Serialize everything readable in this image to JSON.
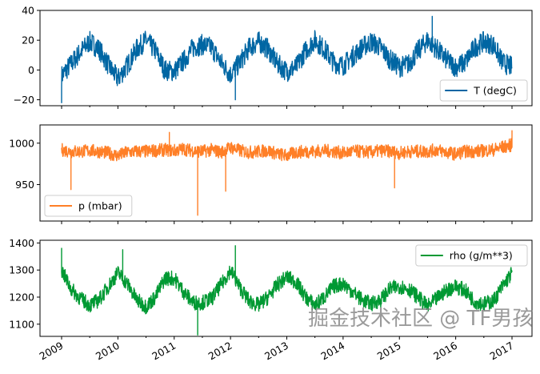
{
  "watermark": "掘金技术社区 @ TF男孩",
  "chart_data": {
    "type": "line",
    "x_ticks": [
      "2009",
      "2010",
      "2011",
      "2012",
      "2013",
      "2014",
      "2015",
      "2016",
      "2017"
    ],
    "x_range": [
      "2009-01",
      "2017-01"
    ],
    "x": [
      "2009-01",
      "2009-03",
      "2009-05",
      "2009-07",
      "2009-09",
      "2009-11",
      "2010-01",
      "2010-03",
      "2010-05",
      "2010-07",
      "2010-09",
      "2010-11",
      "2011-01",
      "2011-03",
      "2011-05",
      "2011-07",
      "2011-09",
      "2011-11",
      "2012-01",
      "2012-03",
      "2012-05",
      "2012-07",
      "2012-09",
      "2012-11",
      "2013-01",
      "2013-03",
      "2013-05",
      "2013-07",
      "2013-09",
      "2013-11",
      "2014-01",
      "2014-03",
      "2014-05",
      "2014-07",
      "2014-09",
      "2014-11",
      "2015-01",
      "2015-03",
      "2015-05",
      "2015-07",
      "2015-09",
      "2015-11",
      "2016-01",
      "2016-03",
      "2016-05",
      "2016-07",
      "2016-09",
      "2016-11",
      "2017-01"
    ],
    "subplots": [
      {
        "name": "T (degC)",
        "color": "#0066a3",
        "ylim": [
          -24,
          40
        ],
        "yticks": [
          "40",
          "20",
          "0",
          "−20"
        ],
        "ytick_values": [
          40,
          20,
          0,
          -20
        ],
        "legend": "lower right",
        "spread": 7,
        "values": [
          -4,
          4,
          12,
          19,
          14,
          3,
          -6,
          3,
          14,
          20,
          13,
          0,
          -1,
          6,
          15,
          17,
          15,
          5,
          -3,
          5,
          15,
          19,
          14,
          4,
          -1,
          2,
          13,
          20,
          14,
          5,
          3,
          9,
          15,
          19,
          15,
          7,
          2,
          4,
          13,
          20,
          14,
          7,
          2,
          5,
          15,
          19,
          17,
          5,
          2
        ],
        "extremes": [
          {
            "x": "2009-01",
            "y": -22
          },
          {
            "x": "2012-02",
            "y": -20
          },
          {
            "x": "2015-08",
            "y": 36
          }
        ]
      },
      {
        "name": "p (mbar)",
        "color": "#ff7f27",
        "ylim": [
          906,
          1022
        ],
        "yticks": [
          "1000",
          "950"
        ],
        "ytick_values": [
          1000,
          950
        ],
        "legend": "lower left",
        "spread": 8,
        "values": [
          992,
          990,
          990,
          991,
          990,
          988,
          985,
          989,
          990,
          990,
          991,
          992,
          991,
          993,
          991,
          990,
          992,
          989,
          995,
          991,
          989,
          990,
          991,
          987,
          985,
          989,
          990,
          990,
          991,
          990,
          988,
          990,
          990,
          989,
          991,
          990,
          988,
          990,
          990,
          990,
          992,
          989,
          987,
          990,
          990,
          991,
          992,
          995,
          998
        ],
        "extremes": [
          {
            "x": "2009-03",
            "y": 944
          },
          {
            "x": "2011-06",
            "y": 913
          },
          {
            "x": "2011-12",
            "y": 942
          },
          {
            "x": "2014-12",
            "y": 946
          },
          {
            "x": "2010-12",
            "y": 1013
          },
          {
            "x": "2017-01",
            "y": 1015
          }
        ]
      },
      {
        "name": "rho (g/m**3)",
        "color": "#009933",
        "ylim": [
          1055,
          1410
        ],
        "yticks": [
          "1400",
          "1300",
          "1200",
          "1100"
        ],
        "ytick_values": [
          1400,
          1300,
          1200,
          1100
        ],
        "legend": "upper right",
        "spread": 28,
        "values": [
          1300,
          1230,
          1195,
          1170,
          1190,
          1240,
          1290,
          1250,
          1190,
          1165,
          1200,
          1270,
          1270,
          1220,
          1180,
          1180,
          1195,
          1245,
          1300,
          1235,
          1185,
          1170,
          1200,
          1245,
          1275,
          1255,
          1200,
          1170,
          1200,
          1240,
          1250,
          1220,
          1190,
          1175,
          1190,
          1230,
          1240,
          1230,
          1200,
          1165,
          1195,
          1225,
          1240,
          1225,
          1185,
          1175,
          1185,
          1240,
          1290
        ],
        "extremes": [
          {
            "x": "2009-01",
            "y": 1380
          },
          {
            "x": "2010-02",
            "y": 1375
          },
          {
            "x": "2011-06",
            "y": 1060
          },
          {
            "x": "2012-02",
            "y": 1390
          }
        ]
      }
    ]
  }
}
